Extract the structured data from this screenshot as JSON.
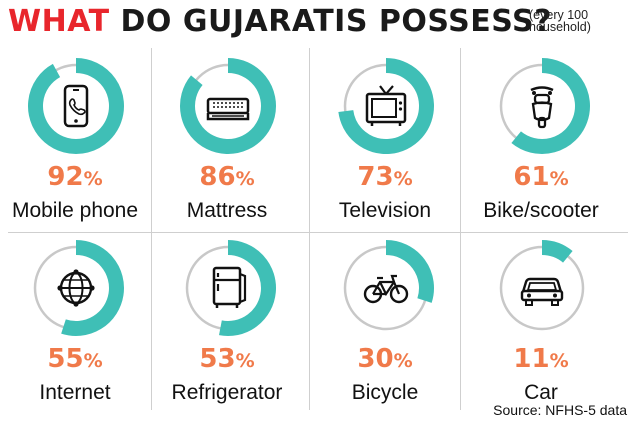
{
  "title": {
    "highlight": "WHAT",
    "rest": "DO GUJARATIS POSSESS?"
  },
  "note": {
    "line1": "(every 100",
    "line2": "household)"
  },
  "source": "Source: NFHS-5 data",
  "colors": {
    "fill": "#3fbfb6",
    "track": "#c8c8c8",
    "percent": "#f07a4a",
    "title_accent": "#e8262c"
  },
  "chart_data": {
    "type": "donut",
    "unit": "%",
    "items": [
      {
        "label": "Mobile phone",
        "value": 92,
        "icon": "mobile-phone-icon"
      },
      {
        "label": "Mattress",
        "value": 86,
        "icon": "mattress-icon"
      },
      {
        "label": "Television",
        "value": 73,
        "icon": "television-icon"
      },
      {
        "label": "Bike/scooter",
        "value": 61,
        "icon": "scooter-icon"
      },
      {
        "label": "Internet",
        "value": 55,
        "icon": "globe-icon"
      },
      {
        "label": "Refrigerator",
        "value": 53,
        "icon": "refrigerator-icon"
      },
      {
        "label": "Bicycle",
        "value": 30,
        "icon": "bicycle-icon"
      },
      {
        "label": "Car",
        "value": 11,
        "icon": "car-icon"
      }
    ]
  }
}
